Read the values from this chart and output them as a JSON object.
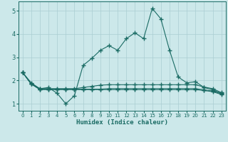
{
  "xlabel": "Humidex (Indice chaleur)",
  "xlim": [
    -0.5,
    23.5
  ],
  "ylim": [
    0.7,
    5.4
  ],
  "xticks": [
    0,
    1,
    2,
    3,
    4,
    5,
    6,
    7,
    8,
    9,
    10,
    11,
    12,
    13,
    14,
    15,
    16,
    17,
    18,
    19,
    20,
    21,
    22,
    23
  ],
  "yticks": [
    1,
    2,
    3,
    4,
    5
  ],
  "bg_color": "#cce8ea",
  "line_color": "#1a6b64",
  "grid_color": "#aacdd2",
  "line1_y": [
    2.35,
    1.9,
    1.65,
    1.7,
    1.45,
    1.0,
    1.35,
    2.65,
    2.95,
    3.3,
    3.5,
    3.3,
    3.8,
    4.05,
    3.8,
    5.1,
    4.65,
    3.3,
    2.15,
    1.9,
    1.95,
    1.7,
    1.6,
    1.45
  ],
  "line2_y": [
    2.35,
    1.85,
    1.65,
    1.65,
    1.65,
    1.65,
    1.65,
    1.7,
    1.75,
    1.8,
    1.82,
    1.82,
    1.82,
    1.82,
    1.82,
    1.82,
    1.82,
    1.82,
    1.82,
    1.82,
    1.82,
    1.72,
    1.65,
    1.48
  ],
  "line3_y": [
    2.35,
    1.85,
    1.63,
    1.63,
    1.63,
    1.63,
    1.63,
    1.63,
    1.63,
    1.63,
    1.65,
    1.65,
    1.65,
    1.65,
    1.65,
    1.65,
    1.65,
    1.65,
    1.65,
    1.65,
    1.65,
    1.6,
    1.55,
    1.43
  ],
  "line4_y": [
    2.35,
    1.85,
    1.61,
    1.61,
    1.61,
    1.61,
    1.61,
    1.61,
    1.61,
    1.61,
    1.61,
    1.61,
    1.61,
    1.61,
    1.61,
    1.61,
    1.61,
    1.61,
    1.61,
    1.61,
    1.61,
    1.57,
    1.52,
    1.4
  ]
}
